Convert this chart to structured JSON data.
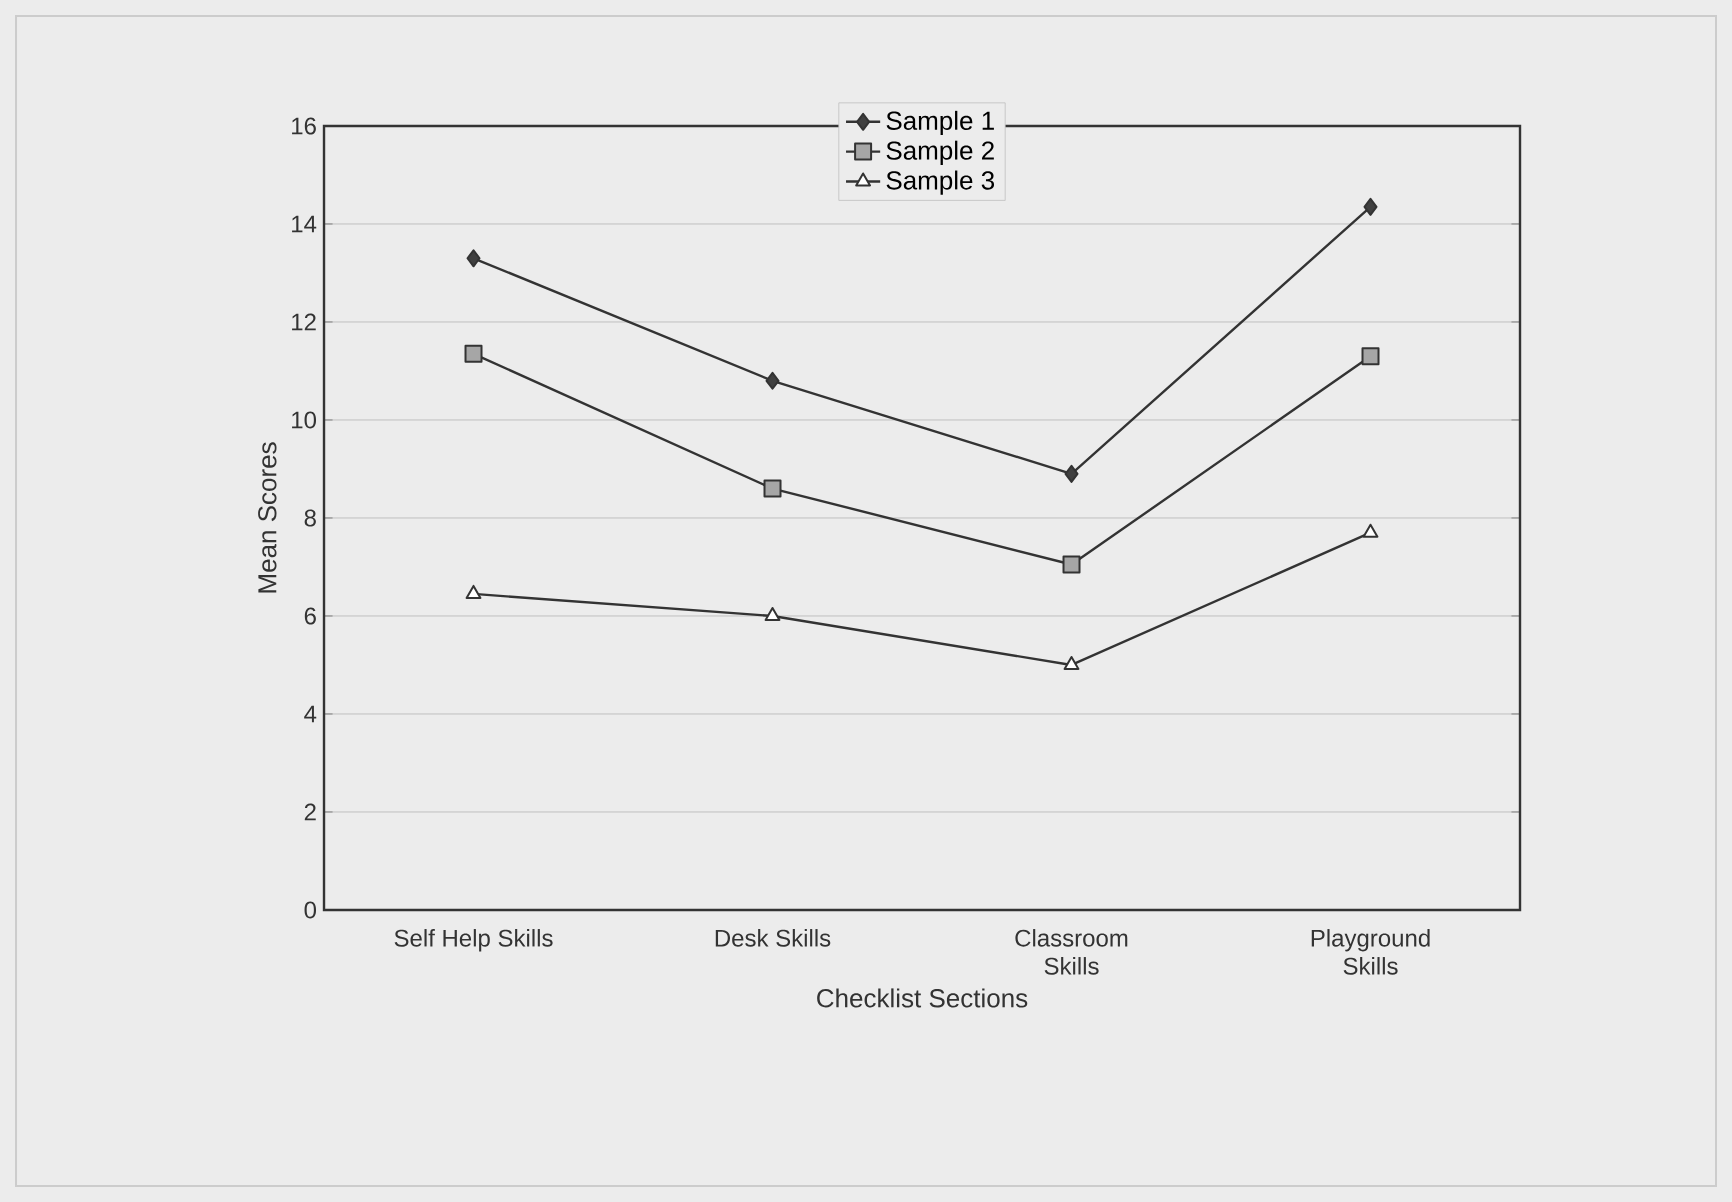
{
  "chart_data": {
    "type": "line",
    "xlabel": "Checklist Sections",
    "ylabel": "Mean Scores",
    "categories": [
      "Self Help Skills",
      "Desk Skills",
      "Classroom Skills",
      "Playground Skills"
    ],
    "series": [
      {
        "name": "Sample 1",
        "color": "#333333",
        "marker": "diamond",
        "values": [
          13.3,
          10.8,
          8.9,
          14.35
        ]
      },
      {
        "name": "Sample 2",
        "color": "#333333",
        "marker": "square",
        "values": [
          11.35,
          8.6,
          7.05,
          11.3
        ]
      },
      {
        "name": "Sample 3",
        "color": "#333333",
        "marker": "triangle",
        "values": [
          6.45,
          6.0,
          5.0,
          7.7
        ]
      }
    ],
    "ylim": [
      0,
      16
    ],
    "yticks": [
      0,
      2,
      4,
      6,
      8,
      10,
      12,
      14,
      16
    ],
    "grid": "y",
    "legend": "top",
    "line_style": "solid"
  }
}
